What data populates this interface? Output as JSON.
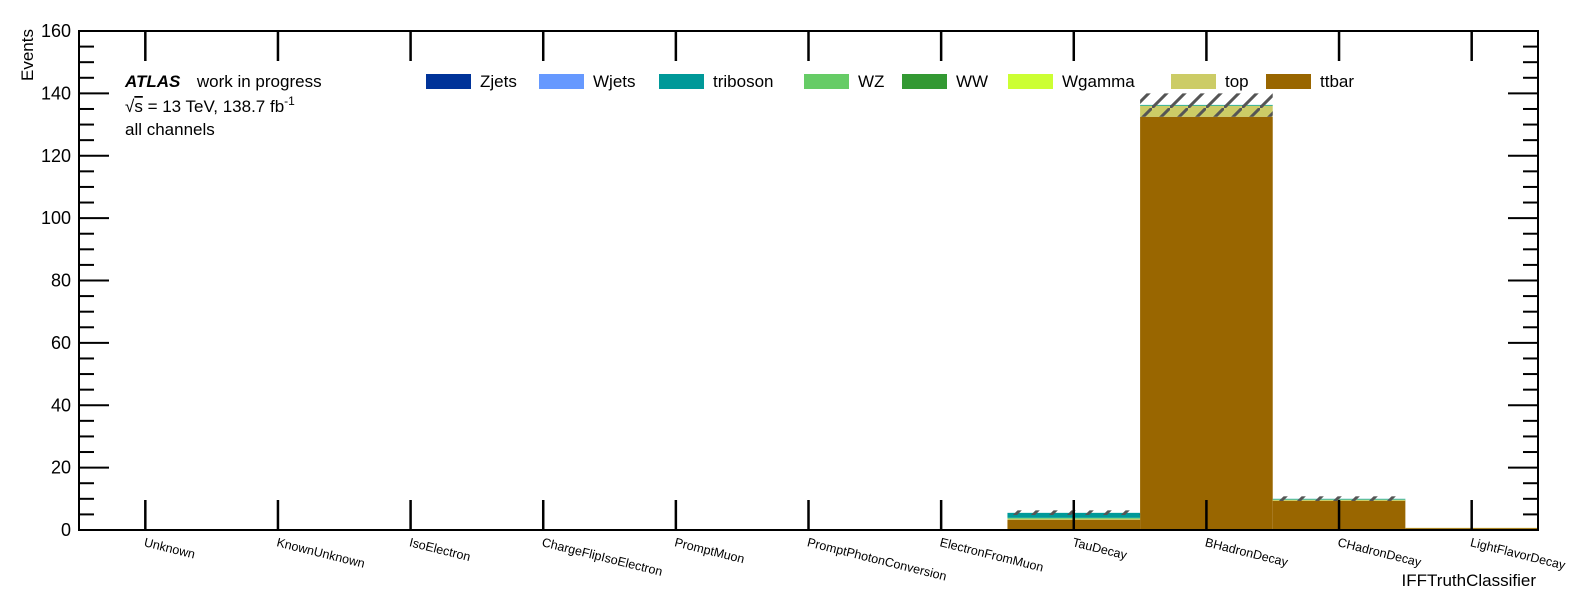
{
  "chart_data": {
    "type": "bar",
    "stacked": true,
    "title": "",
    "xlabel": "IFFTruthClassifier",
    "ylabel": "Events",
    "ylim": [
      0,
      160
    ],
    "yticks": [
      0,
      20,
      40,
      60,
      80,
      100,
      120,
      140,
      160
    ],
    "categories": [
      "Unknown",
      "KnownUnknown",
      "IsoElectron",
      "ChargeFlipIsoElectron",
      "PromptMuon",
      "PromptPhotonConversion",
      "ElectronFromMuon",
      "TauDecay",
      "BHadronDecay",
      "CHadronDecay",
      "LightFlavorDecay"
    ],
    "series": [
      {
        "name": "ttbar",
        "color": "#996600",
        "values": [
          0,
          0,
          0,
          0,
          0,
          0,
          0,
          3.3,
          132.5,
          9.3,
          0.6
        ]
      },
      {
        "name": "top",
        "color": "#cccc66",
        "values": [
          0,
          0,
          0,
          0,
          0,
          0,
          0,
          0.3,
          3.5,
          0.4,
          0.1
        ]
      },
      {
        "name": "Wgamma",
        "color": "#ccff33",
        "values": [
          0,
          0,
          0,
          0,
          0,
          0,
          0,
          0,
          0,
          0,
          0
        ]
      },
      {
        "name": "WW",
        "color": "#339933",
        "values": [
          0,
          0,
          0,
          0,
          0,
          0,
          0,
          0,
          0,
          0,
          0
        ]
      },
      {
        "name": "WZ",
        "color": "#66cc66",
        "values": [
          0,
          0,
          0,
          0,
          0,
          0,
          0,
          0.3,
          0.1,
          0.1,
          0
        ]
      },
      {
        "name": "triboson",
        "color": "#009999",
        "values": [
          0,
          0,
          0,
          0,
          0,
          0,
          0,
          1.6,
          0.2,
          0.2,
          0
        ]
      },
      {
        "name": "Wjets",
        "color": "#6699ff",
        "values": [
          0,
          0,
          0,
          0,
          0,
          0,
          0,
          0,
          0,
          0,
          0
        ]
      },
      {
        "name": "Zjets",
        "color": "#003399",
        "values": [
          0,
          0,
          0,
          0,
          0,
          0,
          0,
          0,
          0,
          0,
          0
        ]
      }
    ],
    "uncertainty": [
      {
        "category": "TauDecay",
        "low": 4.8,
        "high": 6.3
      },
      {
        "category": "BHadronDecay",
        "low": 132.5,
        "high": 140.0
      },
      {
        "category": "CHadronDecay",
        "low": 9.3,
        "high": 10.8
      }
    ],
    "legend_order": [
      "Zjets",
      "Wjets",
      "triboson",
      "WZ",
      "WW",
      "Wgamma",
      "top",
      "ttbar"
    ],
    "legend_placement": "top",
    "grid": false
  },
  "annotations": {
    "atlas": "ATLAS",
    "status": "work in progress",
    "energy_sqrt": "s",
    "energy_rest": " = 13 TeV, 138.7 fb",
    "energy_sup": "-1",
    "channel": "all channels"
  }
}
